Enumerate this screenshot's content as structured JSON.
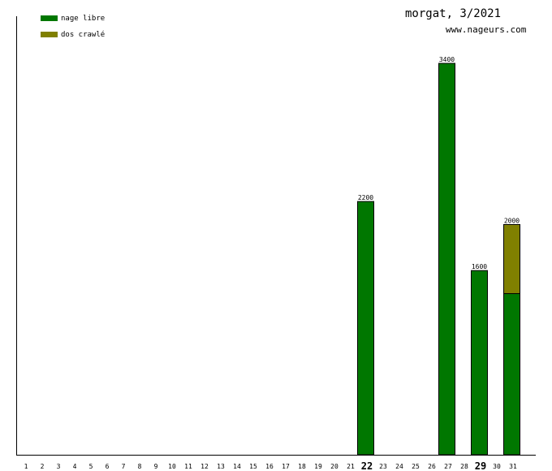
{
  "title": "morgat, 3/2021",
  "site": "www.nageurs.com",
  "colors": {
    "nage_libre": "#007700",
    "dos_crawle": "#808000",
    "axis": "#000000"
  },
  "chart_data": {
    "type": "bar",
    "stacked": true,
    "categories": [
      "1",
      "2",
      "3",
      "4",
      "5",
      "6",
      "7",
      "8",
      "9",
      "10",
      "11",
      "12",
      "13",
      "14",
      "15",
      "16",
      "17",
      "18",
      "19",
      "20",
      "21",
      "22",
      "23",
      "24",
      "25",
      "26",
      "27",
      "28",
      "29",
      "30",
      "31"
    ],
    "bold_categories": [
      "22",
      "29"
    ],
    "series": [
      {
        "name": "nage libre",
        "color": "#007700",
        "values": [
          0,
          0,
          0,
          0,
          0,
          0,
          0,
          0,
          0,
          0,
          0,
          0,
          0,
          0,
          0,
          0,
          0,
          0,
          0,
          0,
          0,
          2200,
          0,
          0,
          0,
          0,
          3400,
          0,
          1600,
          0,
          1400
        ]
      },
      {
        "name": "dos crawlé",
        "color": "#808000",
        "values": [
          0,
          0,
          0,
          0,
          0,
          0,
          0,
          0,
          0,
          0,
          0,
          0,
          0,
          0,
          0,
          0,
          0,
          0,
          0,
          0,
          0,
          0,
          0,
          0,
          0,
          0,
          0,
          0,
          0,
          0,
          600
        ]
      }
    ],
    "totals": [
      {
        "day": "22",
        "label": "2200"
      },
      {
        "day": "27",
        "label": "3400"
      },
      {
        "day": "29",
        "label": "1600"
      },
      {
        "day": "31",
        "label": "2000"
      }
    ],
    "ylim": [
      0,
      3500
    ],
    "legend_position": "top-left"
  }
}
